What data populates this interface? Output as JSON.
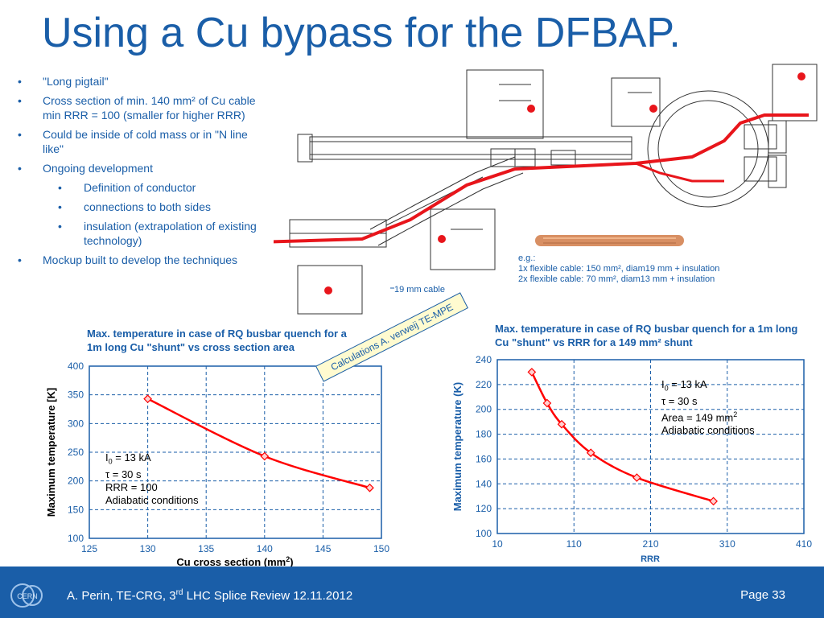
{
  "slide": {
    "title": "Using a Cu bypass for the DFBAP.",
    "bullets": [
      {
        "text": "\"Long pigtail\""
      },
      {
        "text": "Cross section of min. 140 mm² of Cu cable min RRR = 100 (smaller for higher RRR)"
      },
      {
        "text": "Could be inside of cold mass or in \"N line like\""
      },
      {
        "text": "Ongoing development"
      },
      {
        "text": "Definition of conductor",
        "sub": true
      },
      {
        "text": "connections to both sides",
        "sub": true
      },
      {
        "text": "insulation (extrapolation of existing technology)",
        "sub": true
      },
      {
        "text": "Mockup built to develop the techniques"
      }
    ],
    "bullet_glyph": "•",
    "cable_note": {
      "line1": "e.g.:",
      "line2": "1x flexible cable:  150 mm², diam19 mm + insulation",
      "line3": "2x flexible cable:  70 mm², diam13 mm + insulation"
    },
    "cable_label": "19 mm cable",
    "calc_note": "Calculations A. verweij TE-MPE",
    "footer": {
      "text": "A. Perin, TE-CRG, 3rd LHC Splice Review 12.11.2012",
      "page": "Page 33",
      "logo_icon": "cern-logo-icon"
    },
    "colors": {
      "brand": "#1a5ea8",
      "series": "#ff0000",
      "marker_fill": "#ffd0d0"
    }
  },
  "chart_data": [
    {
      "type": "line",
      "title": "Max. temperature in case of RQ busbar quench for a 1m long Cu \"shunt\" vs cross section area",
      "xlabel": "Cu cross section (mm²)",
      "ylabel": "Maximum temperature [K]",
      "xlim": [
        125,
        150
      ],
      "ylim": [
        100,
        400
      ],
      "xticks": [
        125,
        130,
        135,
        140,
        145,
        150
      ],
      "yticks": [
        100,
        150,
        200,
        250,
        300,
        350,
        400
      ],
      "grid": true,
      "series": [
        {
          "x": [
            130,
            140,
            149
          ],
          "y": [
            343,
            243,
            188
          ]
        }
      ],
      "annotation": [
        "I0 = 13 kA",
        "τ = 30 s",
        "RRR = 100",
        "Adiabatic conditions"
      ]
    },
    {
      "type": "line",
      "title": "Max. temperature in case of RQ busbar quench for a 1m long Cu \"shunt\" vs RRR for a 149 mm² shunt",
      "xlabel": "RRR",
      "ylabel": "Maximum temperature (K)",
      "xlim": [
        10,
        410
      ],
      "ylim": [
        100,
        240
      ],
      "xticks": [
        10,
        110,
        210,
        310,
        410
      ],
      "yticks": [
        100,
        120,
        140,
        160,
        180,
        200,
        220,
        240
      ],
      "grid": true,
      "series": [
        {
          "x": [
            55,
            75,
            94,
            132,
            192,
            292
          ],
          "y": [
            230,
            205,
            188,
            165,
            145,
            126
          ]
        }
      ],
      "annotation": [
        "I0 = 13 kA",
        "τ = 30 s",
        "Area = 149 mm²",
        "Adiabatic conditions"
      ]
    }
  ]
}
